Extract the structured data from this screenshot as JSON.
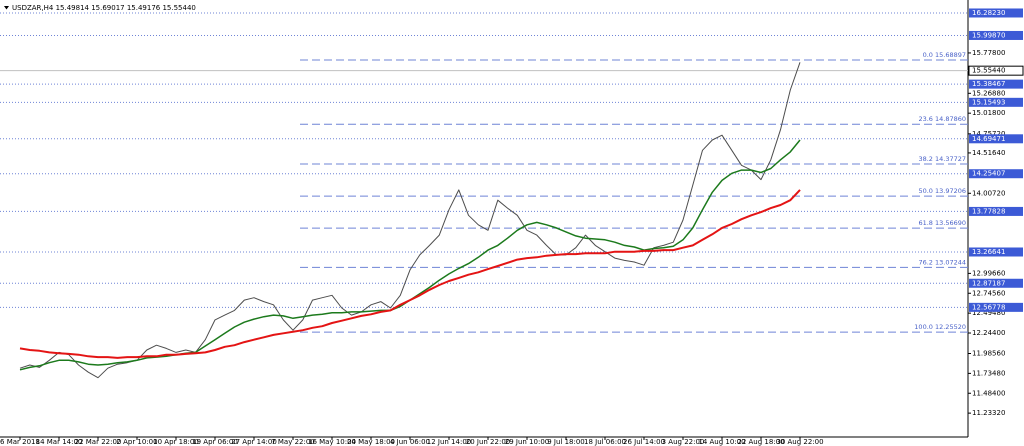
{
  "chart_data": {
    "type": "line",
    "title": "USDZAR,H4  15.49814 15.69017 15.49176 15.55440",
    "x": [
      "6 Mar 2018",
      null,
      null,
      null,
      "14 Mar 14:00",
      null,
      null,
      null,
      "22 Mar 22:00",
      null,
      null,
      null,
      "2 Apr 10:00",
      null,
      null,
      null,
      "10 Apr 18:00",
      null,
      null,
      null,
      "19 Apr 06:00",
      null,
      null,
      null,
      "27 Apr 14:00",
      null,
      null,
      null,
      "7 May 22:00",
      null,
      null,
      null,
      "16 May 10:00",
      null,
      null,
      null,
      "24 May 18:00",
      null,
      null,
      null,
      "4 Jun 06:00",
      null,
      null,
      null,
      "12 Jun 14:00",
      null,
      null,
      null,
      "20 Jun 22:00",
      null,
      null,
      null,
      "29 Jun 10:00",
      null,
      null,
      null,
      "9 Jul 18:00",
      null,
      null,
      null,
      "18 Jul 06:00",
      null,
      null,
      null,
      "26 Jul 14:00",
      null,
      null,
      null,
      "3 Aug 22:00",
      null,
      null,
      null,
      "14 Aug 10:00",
      null,
      null,
      null,
      "22 Aug 18:00",
      null,
      null,
      null,
      "30 Aug 22:00"
    ],
    "series": [
      {
        "color": "#4d4d4d",
        "width": 1,
        "values": [
          11.8,
          11.84,
          11.81,
          11.9,
          12.0,
          11.97,
          11.84,
          11.75,
          11.68,
          11.8,
          11.85,
          11.87,
          11.9,
          12.03,
          12.09,
          12.05,
          12.0,
          12.03,
          12.0,
          12.16,
          12.41,
          12.47,
          12.53,
          12.66,
          12.69,
          12.64,
          12.6,
          12.41,
          12.28,
          12.41,
          12.66,
          12.69,
          12.72,
          12.56,
          12.47,
          12.51,
          12.6,
          12.64,
          12.56,
          12.72,
          13.04,
          13.23,
          13.35,
          13.48,
          13.8,
          14.05,
          13.73,
          13.61,
          13.54,
          13.92,
          13.82,
          13.73,
          13.54,
          13.48,
          13.35,
          13.23,
          13.23,
          13.32,
          13.48,
          13.35,
          13.27,
          13.19,
          13.16,
          13.14,
          13.1,
          13.32,
          13.35,
          13.39,
          13.67,
          14.11,
          14.55,
          14.68,
          14.74,
          14.55,
          14.36,
          14.3,
          14.18,
          14.43,
          14.81,
          15.31,
          15.66
        ]
      },
      {
        "color": "#1c7a1c",
        "width": 1.5,
        "values": [
          11.78,
          11.81,
          11.83,
          11.87,
          11.9,
          11.9,
          11.88,
          11.85,
          11.84,
          11.85,
          11.87,
          11.88,
          11.9,
          11.93,
          11.94,
          11.95,
          11.97,
          11.99,
          12.0,
          12.08,
          12.16,
          12.24,
          12.32,
          12.38,
          12.42,
          12.45,
          12.47,
          12.46,
          12.43,
          12.45,
          12.47,
          12.48,
          12.5,
          12.5,
          12.51,
          12.51,
          12.52,
          12.53,
          12.53,
          12.58,
          12.66,
          12.74,
          12.82,
          12.91,
          12.99,
          13.06,
          13.12,
          13.2,
          13.29,
          13.35,
          13.44,
          13.54,
          13.61,
          13.64,
          13.61,
          13.57,
          13.52,
          13.47,
          13.44,
          13.43,
          13.42,
          13.39,
          13.35,
          13.33,
          13.29,
          13.31,
          13.32,
          13.34,
          13.42,
          13.57,
          13.8,
          14.02,
          14.17,
          14.26,
          14.3,
          14.3,
          14.27,
          14.32,
          14.43,
          14.53,
          14.68
        ]
      },
      {
        "color": "#e41414",
        "width": 2,
        "values": [
          12.05,
          12.03,
          12.02,
          12.0,
          11.99,
          11.98,
          11.97,
          11.95,
          11.94,
          11.94,
          11.93,
          11.94,
          11.94,
          11.95,
          11.95,
          11.97,
          11.97,
          11.98,
          11.99,
          12.0,
          12.03,
          12.07,
          12.09,
          12.13,
          12.16,
          12.19,
          12.22,
          12.24,
          12.26,
          12.28,
          12.31,
          12.33,
          12.37,
          12.4,
          12.43,
          12.46,
          12.48,
          12.51,
          12.53,
          12.6,
          12.66,
          12.72,
          12.79,
          12.85,
          12.9,
          12.94,
          12.98,
          13.01,
          13.05,
          13.09,
          13.13,
          13.17,
          13.19,
          13.2,
          13.22,
          13.23,
          13.24,
          13.24,
          13.25,
          13.25,
          13.25,
          13.27,
          13.27,
          13.27,
          13.28,
          13.28,
          13.29,
          13.29,
          13.32,
          13.35,
          13.42,
          13.49,
          13.57,
          13.62,
          13.68,
          13.73,
          13.77,
          13.82,
          13.86,
          13.92,
          14.05
        ]
      }
    ],
    "ylim": [
      10.932,
      16.383
    ],
    "yticks": [
      {
        "value": 15.778,
        "label": "15.77800"
      },
      {
        "value": 15.2688,
        "label": "15.26880"
      },
      {
        "value": 15.018,
        "label": "15.01800"
      },
      {
        "value": 14.7572,
        "label": "14.75720"
      },
      {
        "value": 14.5164,
        "label": "14.51640"
      },
      {
        "value": 14.0072,
        "label": "14.00720"
      },
      {
        "value": 12.9966,
        "label": "12.99660"
      },
      {
        "value": 12.7456,
        "label": "12.74560"
      },
      {
        "value": 12.4948,
        "label": "12.49480"
      },
      {
        "value": 12.244,
        "label": "12.24400"
      },
      {
        "value": 11.9856,
        "label": "11.98560"
      },
      {
        "value": 11.7348,
        "label": "11.73480"
      },
      {
        "value": 11.484,
        "label": "11.48400"
      },
      {
        "value": 11.2332,
        "label": "11.23320"
      }
    ],
    "levels": [
      {
        "value": 16.2823,
        "label": "16.28230"
      },
      {
        "value": 15.9987,
        "label": "15.99870"
      },
      {
        "value": 15.38467,
        "label": "15.38467"
      },
      {
        "value": 15.15493,
        "label": "15.15493"
      },
      {
        "value": 14.69471,
        "label": "14.69471"
      },
      {
        "value": 14.25407,
        "label": "14.25407"
      },
      {
        "value": 13.77828,
        "label": "13.77828"
      },
      {
        "value": 13.26641,
        "label": "13.26641"
      },
      {
        "value": 12.87187,
        "label": "12.87187"
      },
      {
        "value": 12.56778,
        "label": "12.56778"
      }
    ],
    "level_color": "#3c5ad6",
    "last_price": {
      "value": 15.5544,
      "label": "15.55440"
    },
    "fibonacci": [
      {
        "value": 15.68897,
        "label": "0.0 15.68897"
      },
      {
        "value": 14.8786,
        "label": "23.6 14.87860"
      },
      {
        "value": 14.37727,
        "label": "38.2 14.37727"
      },
      {
        "value": 13.97206,
        "label": "50.0 13.97206"
      },
      {
        "value": 13.5669,
        "label": "61.8 13.56690"
      },
      {
        "value": 13.07244,
        "label": "76.2 13.07244"
      },
      {
        "value": 12.2552,
        "label": "100.0 12.25520"
      }
    ]
  }
}
